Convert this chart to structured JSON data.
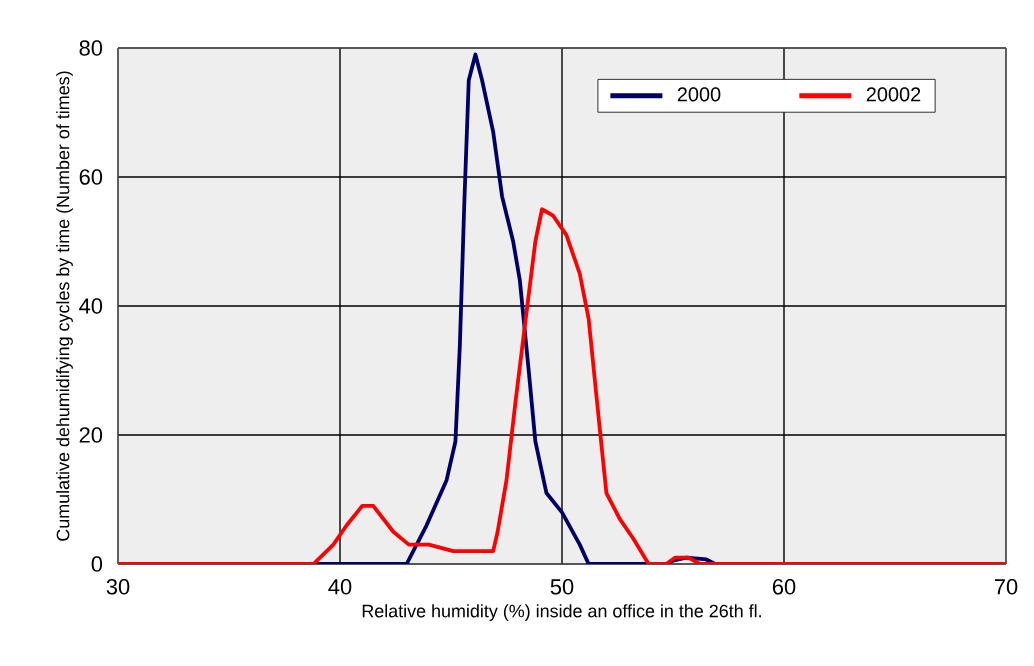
{
  "chart_data": {
    "type": "line",
    "xlabel": "Relative humidity (%) inside an office in the 26th fl.",
    "ylabel": "Cumulative dehumidifying cycles by time (Number of times)",
    "xlim": [
      30,
      70
    ],
    "ylim": [
      0,
      80
    ],
    "xticks": [
      30,
      40,
      50,
      60,
      70
    ],
    "yticks": [
      0,
      20,
      40,
      60,
      80
    ],
    "grid": true,
    "legend": "top right",
    "line_style": "solid",
    "marker": "none",
    "series": [
      {
        "name": "2000",
        "color": "#000066",
        "x": [
          30,
          43.0,
          43.9,
          44.8,
          45.2,
          45.4,
          45.6,
          45.8,
          46.1,
          46.4,
          46.9,
          47.3,
          47.8,
          48.1,
          48.5,
          48.8,
          49.3,
          50.0,
          50.8,
          51.2,
          54.7,
          55.0,
          55.6,
          56.5,
          56.9,
          70
        ],
        "values": [
          0,
          0,
          6,
          13,
          19,
          34,
          56,
          75,
          79,
          75,
          67,
          57,
          50,
          44,
          30,
          19,
          11,
          8,
          3,
          0,
          0,
          0.5,
          1,
          0.7,
          0,
          0
        ]
      },
      {
        "name": "20002",
        "color": "#ff0000",
        "x": [
          30,
          38.8,
          39.7,
          40.3,
          41.0,
          41.5,
          42.4,
          43.1,
          44.0,
          45.1,
          46.9,
          47.1,
          47.5,
          47.9,
          48.4,
          48.8,
          49.1,
          49.6,
          50.2,
          50.8,
          51.2,
          51.7,
          52.0,
          52.6,
          53.2,
          53.9,
          54.7,
          55.1,
          55.7,
          56.2,
          70
        ],
        "values": [
          0,
          0,
          3,
          6,
          9,
          9,
          5,
          3,
          3,
          2,
          2,
          5,
          13,
          25,
          39,
          50,
          55,
          54,
          51,
          45,
          38,
          21,
          11,
          7,
          4,
          0,
          0,
          1,
          1,
          0,
          0
        ]
      }
    ]
  }
}
